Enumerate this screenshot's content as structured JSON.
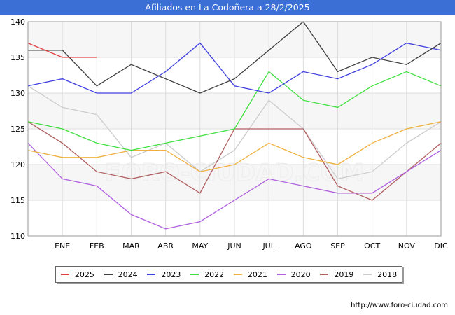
{
  "header": {
    "title": "Afiliados en La Codoñera a 28/2/2025"
  },
  "footer": {
    "source": "http://www.foro-ciudad.com"
  },
  "watermark": "FORO-CIUDAD.COM",
  "chart_data": {
    "type": "line",
    "categories": [
      "",
      "ENE",
      "FEB",
      "MAR",
      "ABR",
      "MAY",
      "JUN",
      "JUL",
      "AGO",
      "SEP",
      "OCT",
      "NOV",
      "DIC"
    ],
    "y_ticks": [
      110,
      115,
      120,
      125,
      130,
      135,
      140
    ],
    "ylim": [
      110,
      140
    ],
    "grid": true,
    "legend_position": "bottom",
    "series": [
      {
        "name": "2025",
        "color": "#e04040",
        "values": [
          137,
          135,
          135,
          null,
          null,
          null,
          null,
          null,
          null,
          null,
          null,
          null,
          null
        ]
      },
      {
        "name": "2024",
        "color": "#404040",
        "values": [
          136,
          136,
          131,
          134,
          132,
          130,
          132,
          136,
          140,
          133,
          135,
          134,
          137
        ]
      },
      {
        "name": "2023",
        "color": "#4040e0",
        "values": [
          131,
          132,
          130,
          130,
          133,
          137,
          131,
          130,
          133,
          132,
          134,
          137,
          136
        ]
      },
      {
        "name": "2022",
        "color": "#40e040",
        "values": [
          126,
          125,
          123,
          122,
          123,
          124,
          125,
          133,
          129,
          128,
          131,
          133,
          131
        ]
      },
      {
        "name": "2021",
        "color": "#f0b040",
        "values": [
          122,
          121,
          121,
          122,
          122,
          119,
          120,
          123,
          121,
          120,
          123,
          125,
          126
        ]
      },
      {
        "name": "2020",
        "color": "#b060e0",
        "values": [
          123,
          118,
          117,
          113,
          111,
          112,
          115,
          118,
          117,
          116,
          116,
          119,
          122
        ]
      },
      {
        "name": "2019",
        "color": "#b06060",
        "values": [
          126,
          123,
          119,
          118,
          119,
          116,
          125,
          125,
          125,
          117,
          115,
          119,
          123
        ]
      },
      {
        "name": "2018",
        "color": "#cccccc",
        "values": [
          131,
          128,
          127,
          121,
          123,
          119,
          122,
          129,
          125,
          118,
          119,
          123,
          126
        ]
      }
    ]
  }
}
